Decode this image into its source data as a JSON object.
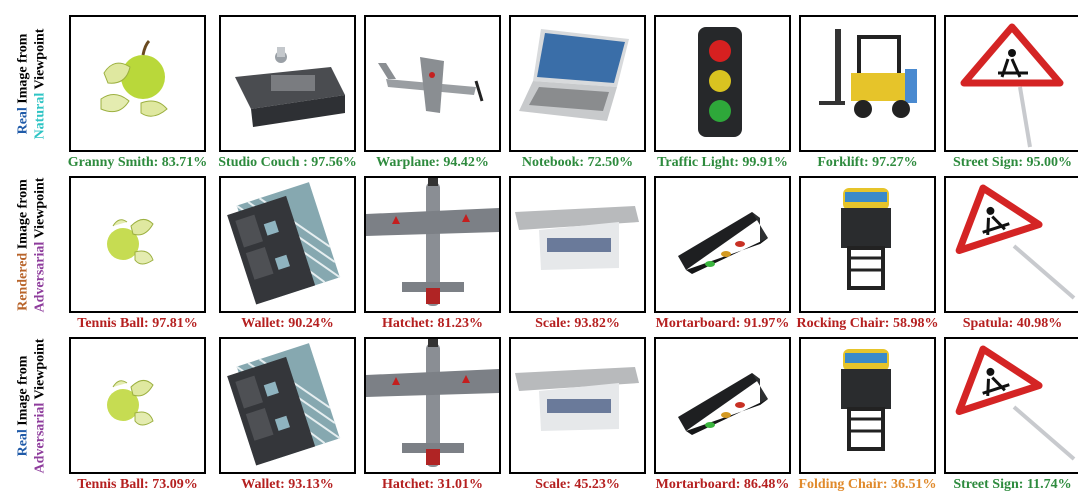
{
  "colors": {
    "green": "#2e8b3e",
    "red": "#b52020",
    "orange": "#e08a2c",
    "real": "#1f5aa8",
    "natural": "#2ec4c4",
    "rendered": "#b8642a",
    "adversarial": "#8e3c9c"
  },
  "row_labels": [
    {
      "line1": [
        {
          "text": "Real",
          "color": "real"
        },
        {
          "text": " Image from",
          "color": "black"
        }
      ],
      "line2": [
        {
          "text": "Natural",
          "color": "natural"
        },
        {
          "text": " Viewpoint",
          "color": "black"
        }
      ]
    },
    {
      "line1": [
        {
          "text": "Rendered",
          "color": "rendered"
        },
        {
          "text": " Image from",
          "color": "black"
        }
      ],
      "line2": [
        {
          "text": "Adversarial",
          "color": "adversarial"
        },
        {
          "text": " Viewpoint",
          "color": "black"
        }
      ]
    },
    {
      "line1": [
        {
          "text": "Real",
          "color": "real"
        },
        {
          "text": " Image from",
          "color": "black"
        }
      ],
      "line2": [
        {
          "text": "Adversarial",
          "color": "adversarial"
        },
        {
          "text": " Viewpoint",
          "color": "black"
        }
      ]
    }
  ],
  "objects": [
    "apple",
    "couch",
    "airplane",
    "laptop",
    "traffic-light",
    "forklift",
    "road-sign"
  ],
  "rows": [
    [
      {
        "caption": "Granny Smith: 83.71%",
        "color": "green"
      },
      {
        "caption": "Studio Couch : 97.56%",
        "color": "green"
      },
      {
        "caption": "Warplane: 94.42%",
        "color": "green"
      },
      {
        "caption": "Notebook: 72.50%",
        "color": "green"
      },
      {
        "caption": "Traffic Light: 99.91%",
        "color": "green"
      },
      {
        "caption": "Forklift: 97.27%",
        "color": "green"
      },
      {
        "caption": "Street Sign: 95.00%",
        "color": "green"
      }
    ],
    [
      {
        "caption": "Tennis Ball: 97.81%",
        "color": "red"
      },
      {
        "caption": "Wallet: 90.24%",
        "color": "red"
      },
      {
        "caption": "Hatchet: 81.23%",
        "color": "red"
      },
      {
        "caption": "Scale: 93.82%",
        "color": "red"
      },
      {
        "caption": "Mortarboard: 91.97%",
        "color": "red"
      },
      {
        "caption": "Rocking Chair: 58.98%",
        "color": "red"
      },
      {
        "caption": "Spatula: 40.98%",
        "color": "red"
      }
    ],
    [
      {
        "caption": "Tennis Ball: 73.09%",
        "color": "red"
      },
      {
        "caption": "Wallet: 93.13%",
        "color": "red"
      },
      {
        "caption": "Hatchet: 31.01%",
        "color": "red"
      },
      {
        "caption": "Scale: 45.23%",
        "color": "red"
      },
      {
        "caption": "Mortarboard: 86.48%",
        "color": "red"
      },
      {
        "caption": "Folding Chair: 36.51%",
        "color": "orange"
      },
      {
        "caption": "Street Sign: 11.74%",
        "color": "green"
      }
    ]
  ]
}
